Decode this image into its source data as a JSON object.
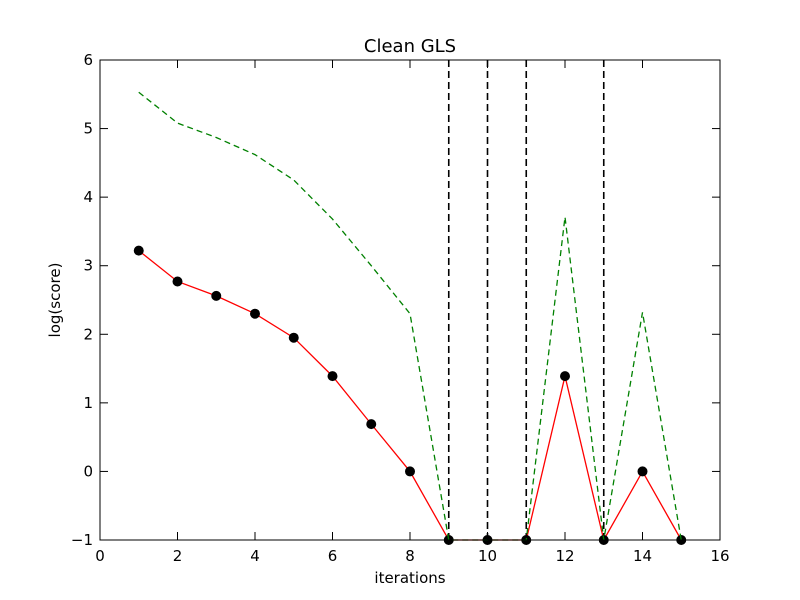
{
  "chart_data": {
    "type": "line",
    "title": "Clean GLS",
    "xlabel": "iterations",
    "ylabel": "log(score)",
    "xlim": [
      0,
      16
    ],
    "ylim": [
      -1,
      6
    ],
    "xticks": [
      0,
      2,
      4,
      6,
      8,
      10,
      12,
      14,
      16
    ],
    "yticks": [
      -1,
      0,
      1,
      2,
      3,
      4,
      5,
      6
    ],
    "ytick_labels": [
      "−1",
      "0",
      "1",
      "2",
      "3",
      "4",
      "5",
      "6"
    ],
    "grid": false,
    "series": [
      {
        "style": "solid-with-markers",
        "color": "#ff0000",
        "marker_color": "#000000",
        "x": [
          1,
          2,
          3,
          4,
          5,
          6,
          7,
          8,
          9,
          10,
          11,
          12,
          13,
          14,
          15
        ],
        "y": [
          3.22,
          2.77,
          2.56,
          2.3,
          1.95,
          1.39,
          0.69,
          0.0,
          -1.0,
          -1.0,
          -1.0,
          1.39,
          -1.0,
          0.0,
          -1.0
        ]
      },
      {
        "style": "dashed",
        "color": "#008000",
        "x": [
          1,
          2,
          3,
          4,
          5,
          6,
          7,
          8,
          9,
          10,
          11,
          12,
          13,
          14,
          15
        ],
        "y": [
          5.53,
          5.08,
          4.87,
          4.62,
          4.25,
          3.68,
          3.0,
          2.3,
          -1.0,
          -1.0,
          -1.0,
          3.71,
          -1.0,
          2.32,
          -1.0
        ]
      }
    ],
    "vertical_lines": {
      "style": "dashed",
      "color": "#000000",
      "x": [
        9,
        10,
        11,
        13
      ]
    }
  }
}
